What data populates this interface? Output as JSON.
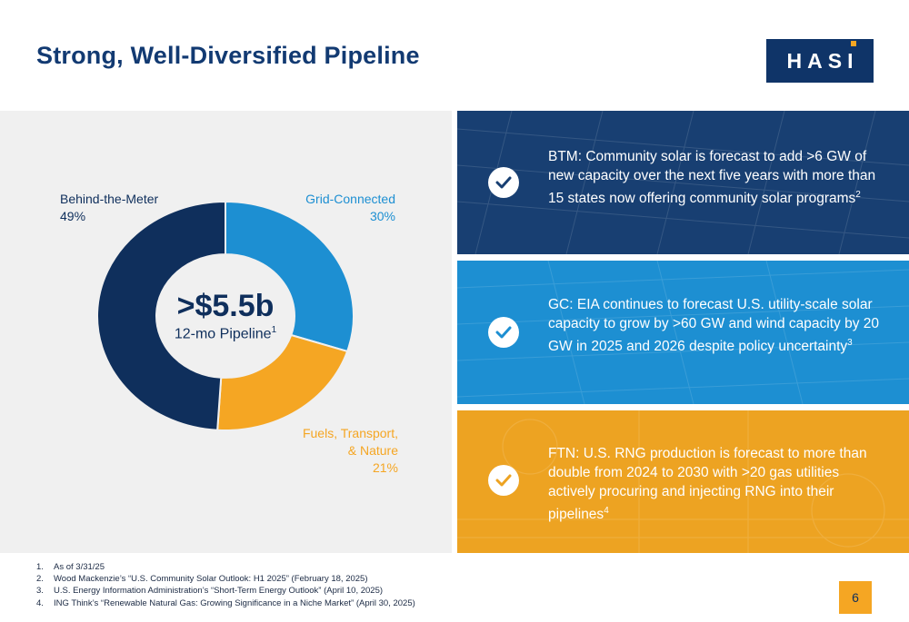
{
  "title": "Strong, Well-Diversified Pipeline",
  "logo": {
    "text": "HASI",
    "bg_color": "#0f3468",
    "accent_color": "#f5a623"
  },
  "chart_data": {
    "type": "pie",
    "center_value": ">$5.5b",
    "center_label": "12-mo Pipeline",
    "center_label_footnote": "1",
    "slices": [
      {
        "name": "Grid-Connected",
        "percent_label": "30%",
        "value": 30,
        "color": "#1d8fd2"
      },
      {
        "name": "Fuels, Transport, & Nature",
        "name_line1": "Fuels, Transport,",
        "name_line2": "& Nature",
        "percent_label": "21%",
        "value": 21,
        "color": "#f5a623"
      },
      {
        "name": "Behind-the-Meter",
        "percent_label": "49%",
        "value": 49,
        "color": "#0f2f5c"
      }
    ]
  },
  "cards": [
    {
      "text": "BTM: Community solar is forecast to add >6 GW of new capacity over the next five years with more than 15 states now offering community solar programs",
      "footnote": "2",
      "color": "#183f72"
    },
    {
      "text": "GC: EIA continues to forecast U.S. utility-scale solar capacity to grow by >60 GW and wind capacity by 20 GW in 2025 and 2026 despite policy uncertainty",
      "footnote": "3",
      "color": "#1d8fd2"
    },
    {
      "text": "FTN: U.S. RNG production is forecast to more than double from 2024 to 2030 with >20 gas utilities actively procuring and injecting RNG into their pipelines",
      "footnote": "4",
      "color": "#eda322"
    }
  ],
  "footnotes": [
    {
      "num": "1.",
      "text": "As of 3/31/25"
    },
    {
      "num": "2.",
      "text": "Wood Mackenzie’s “U.S. Community Solar Outlook: H1 2025” (February 18, 2025)"
    },
    {
      "num": "3.",
      "text": "U.S. Energy Information Administration’s “Short-Term Energy Outlook” (April 10, 2025)"
    },
    {
      "num": "4.",
      "text": "ING Think’s “Renewable Natural Gas: Growing Significance in a Niche Market” (April 30, 2025)"
    }
  ],
  "page_number": "6",
  "icons": {
    "check": "check-circle-icon"
  }
}
